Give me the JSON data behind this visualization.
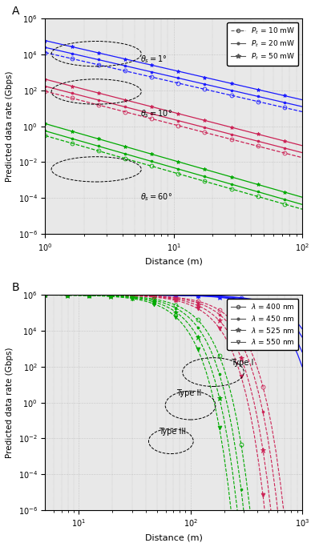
{
  "panel_A": {
    "title": "A",
    "xlabel": "Distance (m)",
    "ylabel": "Predicted data rate (Gbps)",
    "xlim_log": [
      0,
      2
    ],
    "ylim": [
      1e-06,
      1000000.0
    ],
    "colors": {
      "theta1": "#1a1aff",
      "theta10": "#cc2255",
      "theta60": "#00aa00"
    },
    "blue_scales": [
      13000.0,
      25000.0,
      60000.0
    ],
    "red_scales": [
      90,
      170,
      420
    ],
    "green_scales": [
      0.3,
      0.55,
      1.4
    ],
    "blue_slope": -1.65,
    "red_slope": -1.85,
    "green_slope": -2.05,
    "markers": [
      "o",
      ".",
      "*"
    ],
    "legend_labels": [
      "P_t = 10 mW",
      "P_t = 20 mW",
      "P_t = 50 mW"
    ]
  },
  "panel_B": {
    "title": "B",
    "xlabel": "Distance (m)",
    "ylabel": "Predicted data rate (Gbps)",
    "xlim_log": [
      0.7,
      3
    ],
    "ylim": [
      1e-06,
      1000000.0
    ],
    "colors": {
      "type1": "#1a1aff",
      "type2": "#cc2255",
      "type3": "#00aa00"
    },
    "type1_cuts": [
      480,
      430,
      370,
      330
    ],
    "type2_cuts": [
      130,
      115,
      100,
      88
    ],
    "type3_cuts": [
      65,
      57,
      50,
      44
    ],
    "markers": [
      "o",
      ".",
      "*",
      "v"
    ],
    "legend_labels": [
      "lambda = 400 nm",
      "lambda = 450 nm",
      "lambda = 525 nm",
      "lambda = 550 nm"
    ]
  },
  "bg_color": "#e8e8e8",
  "grid_color": "#aaaaaa"
}
